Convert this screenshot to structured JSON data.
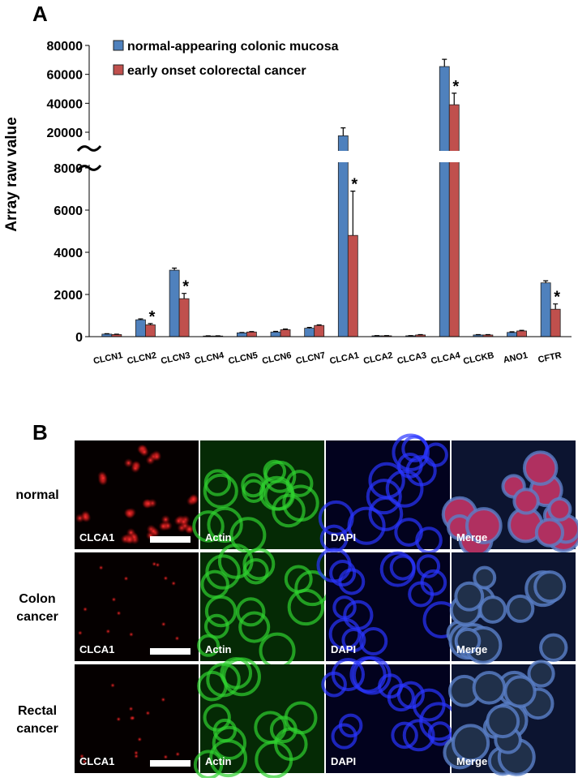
{
  "chart_data": {
    "type": "bar",
    "panel_label": "A",
    "ylabel": "Array raw value",
    "categories": [
      "CLCN1",
      "CLCN2",
      "CLCN3",
      "CLCN4",
      "CLCN5",
      "CLCN6",
      "CLCN7",
      "CLCA1",
      "CLCA2",
      "CLCA3",
      "CLCA4",
      "CLCKB",
      "ANO1",
      "CFTR"
    ],
    "series": [
      {
        "name": "normal-appearing colonic mucosa",
        "color": "#4f81bd",
        "values": [
          120,
          800,
          3150,
          30,
          180,
          220,
          400,
          18800,
          40,
          40,
          65400,
          80,
          200,
          2550
        ],
        "errors": [
          20,
          40,
          100,
          10,
          20,
          30,
          40,
          4200,
          10,
          10,
          5000,
          15,
          30,
          100
        ]
      },
      {
        "name": "early onset colorectal cancer",
        "color": "#c0504d",
        "values": [
          100,
          560,
          1800,
          30,
          220,
          330,
          530,
          4800,
          40,
          80,
          39000,
          80,
          270,
          1300
        ],
        "errors": [
          15,
          60,
          250,
          10,
          20,
          30,
          30,
          2100,
          10,
          15,
          8000,
          15,
          30,
          250
        ],
        "markers": [
          null,
          "*",
          "*",
          null,
          null,
          null,
          null,
          "*",
          null,
          null,
          "*",
          null,
          null,
          "*"
        ]
      }
    ],
    "ylim": [
      0,
      8000
    ],
    "yticks": [
      0,
      2000,
      4000,
      6000,
      8000
    ],
    "ylim_upper": [
      20000,
      80000
    ],
    "yticks_upper": [
      20000,
      40000,
      60000,
      80000
    ],
    "axis_break": true,
    "legend": "top-left"
  },
  "panel_b": {
    "panel_label": "B",
    "rows": [
      {
        "label": "normal",
        "channels": [
          "CLCA1",
          "Actin",
          "DAPI",
          "Merge"
        ]
      },
      {
        "label": "Colon cancer",
        "channels": [
          "CLCA1",
          "Actin",
          "DAPI",
          "Merge"
        ]
      },
      {
        "label": "Rectal cancer",
        "channels": [
          "CLCA1",
          "Actin",
          "DAPI",
          "Merge"
        ]
      }
    ]
  }
}
